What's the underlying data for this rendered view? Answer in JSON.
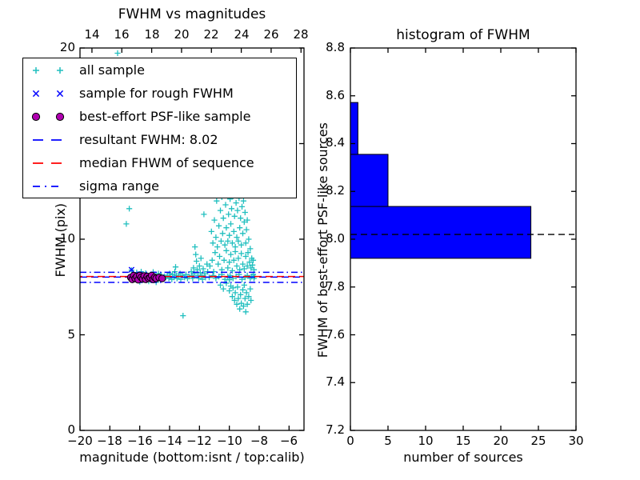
{
  "figure": {
    "background": "#ffffff"
  },
  "colors": {
    "all_sample": "#20bfbf",
    "rough_sample": "#0000ff",
    "psf_sample_fill": "#b000b0",
    "psf_sample_edge": "#000000",
    "resultant_line": "#0000ff",
    "median_line": "#ff0000",
    "sigma_line": "#0000ff",
    "hist_bar_fill": "#0000ff",
    "hist_bar_edge": "#000000",
    "hist_dashed_line": "#000000",
    "axis": "#000000"
  },
  "left_plot": {
    "title": "FWHM vs magnitudes",
    "xlabel": "magnitude (bottom:isnt / top:calib)",
    "ylabel": "FWHM (pix)",
    "xtick_labels_bottom": [
      "−20",
      "−18",
      "−16",
      "−14",
      "−12",
      "−10",
      "−8",
      "−6"
    ],
    "xtick_labels_top": [
      "14",
      "16",
      "18",
      "20",
      "22",
      "24",
      "26",
      "28"
    ],
    "ytick_labels": [
      "20",
      "15",
      "10",
      "5",
      "0"
    ]
  },
  "right_plot": {
    "title": "histogram of FWHM",
    "xlabel": "number of sources",
    "ylabel": "FWHM of best-effort PSF-like sources",
    "xtick_labels": [
      "0",
      "5",
      "10",
      "15",
      "20",
      "25",
      "30"
    ],
    "ytick_labels": [
      "8.8",
      "8.6",
      "8.4",
      "8.2",
      "8.0",
      "7.8",
      "7.6",
      "7.4",
      "7.2"
    ]
  },
  "legend": {
    "entries": [
      {
        "label": "all sample",
        "marker": "plus",
        "color": "#20bfbf"
      },
      {
        "label": "sample for rough FWHM",
        "marker": "x",
        "color": "#0000ff"
      },
      {
        "label": "best-effort PSF-like sample",
        "marker": "circle",
        "color": "#b000b0"
      },
      {
        "label": "resultant FWHM: 8.02",
        "marker": "dashed",
        "color": "#0000ff"
      },
      {
        "label": "median FHWM of sequence",
        "marker": "dashed",
        "color": "#ff0000"
      },
      {
        "label": "sigma range",
        "marker": "dashdot",
        "color": "#0000ff"
      }
    ]
  },
  "chart_data": [
    {
      "type": "scatter",
      "title": "FWHM vs magnitudes",
      "xlabel": "magnitude (bottom:isnt / top:calib)",
      "ylabel": "FWHM (pix)",
      "xlim": [
        -20,
        -5
      ],
      "ylim": [
        0,
        20
      ],
      "top_axis_xlim": [
        13.2,
        28.2
      ],
      "xticks": [
        -20,
        -18,
        -16,
        -14,
        -12,
        -10,
        -8,
        -6
      ],
      "xticks_top": [
        14,
        16,
        18,
        20,
        22,
        24,
        26,
        28
      ],
      "yticks": [
        0,
        5,
        10,
        15,
        20
      ],
      "series": [
        {
          "name": "all sample",
          "marker": "plus",
          "color": "#20bfbf",
          "points": [
            [
              -17.48,
              19.73
            ],
            [
              -16.7,
              11.6
            ],
            [
              -16.9,
              10.8
            ],
            [
              -13.1,
              6.0
            ],
            [
              -16.55,
              8.38
            ],
            [
              -16.2,
              8.26
            ],
            [
              -15.9,
              8.3
            ],
            [
              -15.6,
              8.22
            ],
            [
              -15.1,
              8.28
            ],
            [
              -14.75,
              8.2
            ],
            [
              -14.55,
              8.12
            ],
            [
              -14.35,
              8.05
            ],
            [
              -16.0,
              7.78
            ],
            [
              -15.4,
              7.8
            ],
            [
              -14.9,
              7.75
            ],
            [
              -14.5,
              7.9
            ],
            [
              -14.25,
              8.0
            ],
            [
              -14.15,
              8.1
            ],
            [
              -14.05,
              7.95
            ],
            [
              -14.0,
              8.2
            ],
            [
              -13.95,
              8.05
            ],
            [
              -13.85,
              7.9
            ],
            [
              -13.8,
              8.15
            ],
            [
              -13.7,
              8.0
            ],
            [
              -13.6,
              8.55
            ],
            [
              -13.65,
              8.3
            ],
            [
              -13.55,
              8.1
            ],
            [
              -13.5,
              7.95
            ],
            [
              -13.4,
              8.05
            ],
            [
              -13.3,
              8.2
            ],
            [
              -13.25,
              7.9
            ],
            [
              -13.15,
              8.1
            ],
            [
              -13.0,
              8.0
            ],
            [
              -12.9,
              8.15
            ],
            [
              -12.8,
              7.95
            ],
            [
              -12.7,
              8.05
            ],
            [
              -12.55,
              8.3
            ],
            [
              -12.5,
              8.1
            ],
            [
              -12.45,
              7.95
            ],
            [
              -12.4,
              8.5
            ],
            [
              -12.35,
              8.2
            ],
            [
              -12.3,
              9.6
            ],
            [
              -12.25,
              9.2
            ],
            [
              -12.2,
              8.85
            ],
            [
              -12.15,
              8.4
            ],
            [
              -12.1,
              8.1
            ],
            [
              -12.05,
              7.95
            ],
            [
              -12.0,
              8.6
            ],
            [
              -11.95,
              8.25
            ],
            [
              -11.9,
              9.0
            ],
            [
              -11.85,
              8.1
            ],
            [
              -11.8,
              7.9
            ],
            [
              -11.75,
              8.45
            ],
            [
              -11.7,
              11.3
            ],
            [
              -11.65,
              8.2
            ],
            [
              -11.6,
              8.0
            ],
            [
              -11.5,
              8.7
            ],
            [
              -11.45,
              8.3
            ],
            [
              -11.2,
              10.4
            ],
            [
              -11.1,
              9.8
            ],
            [
              -11.0,
              11.0
            ],
            [
              -10.9,
              10.1
            ],
            [
              -10.85,
              12.0
            ],
            [
              -10.8,
              9.6
            ],
            [
              -10.7,
              10.7
            ],
            [
              -10.6,
              11.5
            ],
            [
              -10.55,
              9.9
            ],
            [
              -10.5,
              12.2
            ],
            [
              -10.45,
              10.3
            ],
            [
              -10.4,
              11.1
            ],
            [
              -10.3,
              9.7
            ],
            [
              -10.25,
              11.8
            ],
            [
              -10.2,
              10.6
            ],
            [
              -10.15,
              12.3
            ],
            [
              -10.1,
              9.9
            ],
            [
              -10.05,
              11.3
            ],
            [
              -10.0,
              10.2
            ],
            [
              -9.95,
              12.1
            ],
            [
              -9.9,
              10.8
            ],
            [
              -9.85,
              11.6
            ],
            [
              -9.8,
              9.8
            ],
            [
              -9.75,
              12.25
            ],
            [
              -9.7,
              10.4
            ],
            [
              -9.65,
              11.2
            ],
            [
              -9.6,
              9.6
            ],
            [
              -9.55,
              11.9
            ],
            [
              -9.5,
              10.1
            ],
            [
              -9.45,
              11.5
            ],
            [
              -9.4,
              9.9
            ],
            [
              -9.35,
              12.15
            ],
            [
              -9.3,
              10.6
            ],
            [
              -9.25,
              11.1
            ],
            [
              -9.2,
              9.7
            ],
            [
              -9.15,
              11.7
            ],
            [
              -9.1,
              10.3
            ],
            [
              -9.05,
              12.0
            ],
            [
              -9.0,
              10.9
            ],
            [
              -8.95,
              11.4
            ],
            [
              -8.9,
              9.8
            ],
            [
              -8.85,
              10.5
            ],
            [
              -8.8,
              11.0
            ],
            [
              -8.7,
              10.0
            ],
            [
              -8.6,
              9.5
            ],
            [
              -11.3,
              8.6
            ],
            [
              -11.15,
              8.9
            ],
            [
              -11.05,
              8.3
            ],
            [
              -10.95,
              9.3
            ],
            [
              -10.75,
              8.7
            ],
            [
              -10.65,
              9.1
            ],
            [
              -10.5,
              8.4
            ],
            [
              -10.35,
              8.9
            ],
            [
              -10.2,
              9.4
            ],
            [
              -10.1,
              8.5
            ],
            [
              -10.0,
              8.8
            ],
            [
              -9.9,
              9.2
            ],
            [
              -9.8,
              8.35
            ],
            [
              -9.7,
              8.9
            ],
            [
              -9.6,
              9.35
            ],
            [
              -9.5,
              8.6
            ],
            [
              -9.4,
              9.0
            ],
            [
              -9.3,
              8.4
            ],
            [
              -9.2,
              9.25
            ],
            [
              -9.1,
              8.7
            ],
            [
              -9.0,
              8.45
            ],
            [
              -8.9,
              9.1
            ],
            [
              -8.8,
              8.6
            ],
            [
              -8.75,
              9.3
            ],
            [
              -8.65,
              8.8
            ],
            [
              -8.55,
              8.5
            ],
            [
              -8.5,
              9.0
            ],
            [
              -8.45,
              8.65
            ],
            [
              -8.4,
              8.9
            ],
            [
              -8.35,
              8.4
            ],
            [
              -11.35,
              8.0
            ],
            [
              -11.1,
              8.1
            ],
            [
              -10.9,
              7.95
            ],
            [
              -10.7,
              8.05
            ],
            [
              -10.5,
              8.15
            ],
            [
              -10.3,
              7.9
            ],
            [
              -10.1,
              8.05
            ],
            [
              -9.95,
              8.1
            ],
            [
              -9.75,
              7.95
            ],
            [
              -9.55,
              8.05
            ],
            [
              -9.35,
              8.15
            ],
            [
              -9.15,
              7.9
            ],
            [
              -8.95,
              8.0
            ],
            [
              -8.8,
              8.1
            ],
            [
              -8.6,
              7.95
            ],
            [
              -8.5,
              8.05
            ],
            [
              -8.4,
              8.15
            ],
            [
              -8.35,
              7.95
            ],
            [
              -8.3,
              8.05
            ],
            [
              -10.0,
              7.88
            ],
            [
              -10.6,
              7.6
            ],
            [
              -10.4,
              7.4
            ],
            [
              -10.2,
              7.7
            ],
            [
              -10.0,
              7.3
            ],
            [
              -9.9,
              7.55
            ],
            [
              -9.8,
              7.0
            ],
            [
              -9.75,
              7.45
            ],
            [
              -9.65,
              6.8
            ],
            [
              -9.6,
              7.2
            ],
            [
              -9.5,
              6.6
            ],
            [
              -9.45,
              7.5
            ],
            [
              -9.4,
              6.9
            ],
            [
              -9.3,
              6.35
            ],
            [
              -9.25,
              7.1
            ],
            [
              -9.2,
              6.65
            ],
            [
              -9.1,
              7.35
            ],
            [
              -9.05,
              6.5
            ],
            [
              -9.0,
              7.6
            ],
            [
              -8.95,
              6.9
            ],
            [
              -8.9,
              6.2
            ],
            [
              -8.85,
              7.2
            ],
            [
              -8.8,
              6.6
            ],
            [
              -8.7,
              7.0
            ],
            [
              -8.6,
              7.4
            ],
            [
              -8.55,
              6.8
            ]
          ]
        },
        {
          "name": "sample for rough FWHM",
          "marker": "x",
          "color": "#0000ff",
          "points": [
            [
              -16.55,
              8.4
            ],
            [
              -16.35,
              8.1
            ],
            [
              -16.05,
              8.0
            ],
            [
              -15.75,
              8.05
            ],
            [
              -15.45,
              7.95
            ],
            [
              -15.15,
              8.0
            ],
            [
              -14.85,
              7.95
            ],
            [
              -14.55,
              8.0
            ]
          ]
        },
        {
          "name": "resultant FWHM: 8.02",
          "line": "dashed",
          "color": "#0000ff",
          "y": 8.02
        },
        {
          "name": "median FHWM of sequence",
          "line": "dashed",
          "color": "#ff0000",
          "y": 8.05
        },
        {
          "name": "sigma range",
          "line": "dashdot",
          "color": "#0000ff",
          "y_values": [
            7.74,
            8.27
          ]
        },
        {
          "name": "best-effort PSF-like sample",
          "marker": "circle",
          "color": "#b000b0",
          "edge": "#000000",
          "points": [
            [
              -16.6,
              8.0
            ],
            [
              -16.5,
              7.9
            ],
            [
              -16.4,
              8.1
            ],
            [
              -16.3,
              7.95
            ],
            [
              -16.2,
              8.05
            ],
            [
              -16.1,
              7.88
            ],
            [
              -16.0,
              8.1
            ],
            [
              -15.9,
              8.0
            ],
            [
              -15.8,
              7.92
            ],
            [
              -15.7,
              8.08
            ],
            [
              -15.6,
              7.9
            ],
            [
              -15.5,
              8.05
            ],
            [
              -15.4,
              7.95
            ],
            [
              -15.3,
              8.0
            ],
            [
              -15.2,
              8.1
            ],
            [
              -15.1,
              7.9
            ],
            [
              -15.0,
              8.0
            ],
            [
              -14.9,
              7.95
            ],
            [
              -14.7,
              8.0
            ],
            [
              -14.5,
              7.95
            ]
          ]
        }
      ]
    },
    {
      "type": "bar",
      "orientation": "horizontal",
      "title": "histogram of FWHM",
      "xlabel": "number of sources",
      "ylabel": "FWHM of best-effort PSF-like sources",
      "xlim": [
        0,
        30
      ],
      "ylim": [
        7.2,
        8.8
      ],
      "xticks": [
        0,
        5,
        10,
        15,
        20,
        25,
        30
      ],
      "yticks": [
        7.2,
        7.4,
        7.6,
        7.8,
        8.0,
        8.2,
        8.4,
        8.6,
        8.8
      ],
      "bins": [
        {
          "from": 7.92,
          "to": 8.137,
          "count": 24
        },
        {
          "from": 8.137,
          "to": 8.355,
          "count": 5
        },
        {
          "from": 8.355,
          "to": 8.572,
          "count": 1
        }
      ],
      "bar_fill": "#0000ff",
      "bar_edge": "#000000",
      "dashed_line_y": 8.02,
      "dashed_line_color": "#000000"
    }
  ]
}
